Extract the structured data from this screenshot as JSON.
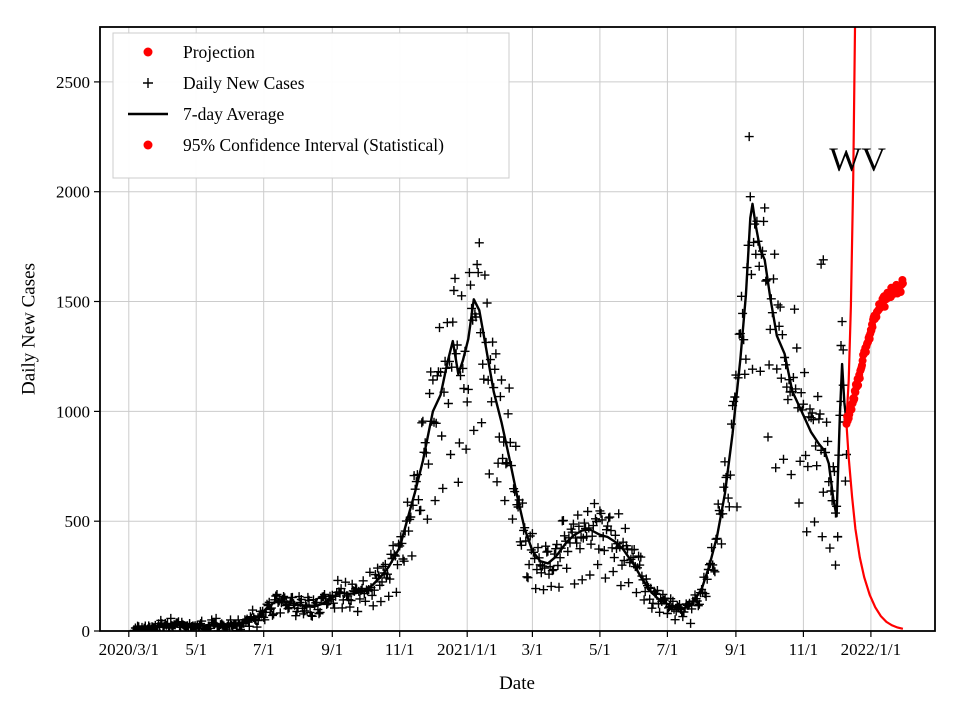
{
  "chart_data": {
    "type": "line+scatter",
    "title": "",
    "xlabel": "Date",
    "ylabel": "Daily New Cases",
    "annotation": {
      "text": "WV",
      "x": "2021-12-20",
      "y": 2150
    },
    "xlim": [
      "2020-02-04",
      "2022-02-28"
    ],
    "ylim": [
      0,
      2750
    ],
    "grid": true,
    "grid_color": "#cccccc",
    "frame_color": "#000000",
    "x_ticks": [
      {
        "date": "2020-03-01",
        "label": "2020/3/1"
      },
      {
        "date": "2020-05-01",
        "label": "5/1"
      },
      {
        "date": "2020-07-01",
        "label": "7/1"
      },
      {
        "date": "2020-09-01",
        "label": "9/1"
      },
      {
        "date": "2020-11-01",
        "label": "11/1"
      },
      {
        "date": "2021-01-01",
        "label": "2021/1/1"
      },
      {
        "date": "2021-03-01",
        "label": "3/1"
      },
      {
        "date": "2021-05-01",
        "label": "5/1"
      },
      {
        "date": "2021-07-01",
        "label": "7/1"
      },
      {
        "date": "2021-09-01",
        "label": "9/1"
      },
      {
        "date": "2021-11-01",
        "label": "11/1"
      },
      {
        "date": "2022-01-01",
        "label": "2022/1/1"
      }
    ],
    "y_ticks": [
      {
        "value": 0,
        "label": "0"
      },
      {
        "value": 500,
        "label": "500"
      },
      {
        "value": 1000,
        "label": "1000"
      },
      {
        "value": 1500,
        "label": "1500"
      },
      {
        "value": 2000,
        "label": "2000"
      },
      {
        "value": 2500,
        "label": "2500"
      }
    ],
    "legend": {
      "position": "upper-left",
      "border_color": "#cccccc",
      "items": [
        {
          "label": "Projection",
          "marker": "red-dot",
          "color": "#ff0000"
        },
        {
          "label": "Daily New Cases",
          "marker": "black-plus",
          "color": "#000000"
        },
        {
          "label": "7-day Average",
          "marker": "black-line",
          "color": "#000000"
        },
        {
          "label": "95% Confidence Interval (Statistical)",
          "marker": "red-dot",
          "color": "#ff0000"
        }
      ]
    },
    "series": {
      "avg_7day": {
        "name": "7-day Average",
        "color": "#000000",
        "width": 2.4,
        "points": [
          [
            "2020-03-05",
            1
          ],
          [
            "2020-03-12",
            6
          ],
          [
            "2020-03-20",
            12
          ],
          [
            "2020-03-27",
            22
          ],
          [
            "2020-04-05",
            30
          ],
          [
            "2020-04-12",
            33
          ],
          [
            "2020-04-20",
            28
          ],
          [
            "2020-04-27",
            25
          ],
          [
            "2020-05-05",
            24
          ],
          [
            "2020-05-12",
            27
          ],
          [
            "2020-05-20",
            25
          ],
          [
            "2020-05-27",
            26
          ],
          [
            "2020-06-04",
            32
          ],
          [
            "2020-06-12",
            40
          ],
          [
            "2020-06-20",
            52
          ],
          [
            "2020-06-27",
            70
          ],
          [
            "2020-07-04",
            105
          ],
          [
            "2020-07-11",
            132
          ],
          [
            "2020-07-18",
            138
          ],
          [
            "2020-07-25",
            128
          ],
          [
            "2020-08-01",
            120
          ],
          [
            "2020-08-08",
            112
          ],
          [
            "2020-08-15",
            110
          ],
          [
            "2020-08-22",
            122
          ],
          [
            "2020-09-01",
            150
          ],
          [
            "2020-09-08",
            176
          ],
          [
            "2020-09-15",
            168
          ],
          [
            "2020-09-22",
            172
          ],
          [
            "2020-10-01",
            182
          ],
          [
            "2020-10-08",
            212
          ],
          [
            "2020-10-15",
            248
          ],
          [
            "2020-10-22",
            292
          ],
          [
            "2020-11-01",
            380
          ],
          [
            "2020-11-08",
            510
          ],
          [
            "2020-11-15",
            635
          ],
          [
            "2020-11-22",
            775
          ],
          [
            "2020-12-01",
            1000
          ],
          [
            "2020-12-08",
            1075
          ],
          [
            "2020-12-14",
            1220
          ],
          [
            "2020-12-19",
            1320
          ],
          [
            "2020-12-24",
            1170
          ],
          [
            "2020-12-28",
            1230
          ],
          [
            "2021-01-02",
            1330
          ],
          [
            "2021-01-07",
            1510
          ],
          [
            "2021-01-12",
            1460
          ],
          [
            "2021-01-18",
            1290
          ],
          [
            "2021-01-25",
            1090
          ],
          [
            "2021-02-01",
            950
          ],
          [
            "2021-02-08",
            790
          ],
          [
            "2021-02-15",
            620
          ],
          [
            "2021-02-22",
            465
          ],
          [
            "2021-03-01",
            365
          ],
          [
            "2021-03-08",
            318
          ],
          [
            "2021-03-15",
            308
          ],
          [
            "2021-03-22",
            338
          ],
          [
            "2021-04-01",
            405
          ],
          [
            "2021-04-08",
            438
          ],
          [
            "2021-04-15",
            458
          ],
          [
            "2021-04-22",
            462
          ],
          [
            "2021-05-01",
            438
          ],
          [
            "2021-05-08",
            428
          ],
          [
            "2021-05-15",
            405
          ],
          [
            "2021-05-22",
            372
          ],
          [
            "2021-06-01",
            300
          ],
          [
            "2021-06-08",
            238
          ],
          [
            "2021-06-15",
            185
          ],
          [
            "2021-06-22",
            150
          ],
          [
            "2021-07-01",
            122
          ],
          [
            "2021-07-08",
            106
          ],
          [
            "2021-07-15",
            102
          ],
          [
            "2021-07-22",
            116
          ],
          [
            "2021-08-01",
            190
          ],
          [
            "2021-08-08",
            298
          ],
          [
            "2021-08-15",
            432
          ],
          [
            "2021-08-22",
            625
          ],
          [
            "2021-08-29",
            900
          ],
          [
            "2021-09-05",
            1240
          ],
          [
            "2021-09-10",
            1530
          ],
          [
            "2021-09-14",
            1880
          ],
          [
            "2021-09-16",
            1945
          ],
          [
            "2021-09-19",
            1845
          ],
          [
            "2021-09-23",
            1735
          ],
          [
            "2021-09-27",
            1690
          ],
          [
            "2021-10-02",
            1520
          ],
          [
            "2021-10-08",
            1345
          ],
          [
            "2021-10-15",
            1262
          ],
          [
            "2021-10-22",
            1092
          ],
          [
            "2021-11-01",
            982
          ],
          [
            "2021-11-08",
            905
          ],
          [
            "2021-11-15",
            852
          ],
          [
            "2021-11-20",
            822
          ],
          [
            "2021-11-24",
            762
          ],
          [
            "2021-11-28",
            602
          ],
          [
            "2021-12-01",
            522
          ],
          [
            "2021-12-04",
            985
          ],
          [
            "2021-12-06",
            1215
          ],
          [
            "2021-12-08",
            1042
          ],
          [
            "2021-12-10",
            955
          ]
        ]
      },
      "projection": {
        "name": "Projection",
        "color": "#ff0000",
        "marker_radius": 4,
        "jitter": 14,
        "points": [
          [
            "2021-12-10",
            950
          ],
          [
            "2021-12-14",
            1015
          ],
          [
            "2021-12-18",
            1090
          ],
          [
            "2021-12-22",
            1170
          ],
          [
            "2021-12-26",
            1255
          ],
          [
            "2021-12-30",
            1335
          ],
          [
            "2022-01-03",
            1405
          ],
          [
            "2022-01-07",
            1460
          ],
          [
            "2022-01-11",
            1500
          ],
          [
            "2022-01-15",
            1524
          ],
          [
            "2022-01-19",
            1540
          ],
          [
            "2022-01-23",
            1552
          ],
          [
            "2022-01-27",
            1562
          ],
          [
            "2022-01-30",
            1580
          ]
        ]
      },
      "ci_upper": {
        "name": "95% CI upper",
        "color": "#ff0000",
        "width": 2.2,
        "points": [
          [
            "2021-12-10",
            960
          ],
          [
            "2021-12-12",
            1140
          ],
          [
            "2021-12-14",
            1480
          ],
          [
            "2021-12-16",
            2050
          ],
          [
            "2021-12-18",
            2900
          ]
        ]
      },
      "ci_lower": {
        "name": "95% CI lower",
        "color": "#ff0000",
        "width": 2.2,
        "points": [
          [
            "2021-12-10",
            940
          ],
          [
            "2021-12-12",
            790
          ],
          [
            "2021-12-15",
            610
          ],
          [
            "2021-12-18",
            465
          ],
          [
            "2021-12-22",
            335
          ],
          [
            "2021-12-26",
            245
          ],
          [
            "2021-12-31",
            165
          ],
          [
            "2022-01-05",
            108
          ],
          [
            "2022-01-10",
            68
          ],
          [
            "2022-01-15",
            42
          ],
          [
            "2022-01-20",
            26
          ],
          [
            "2022-01-25",
            16
          ],
          [
            "2022-01-30",
            10
          ]
        ]
      },
      "daily_scatter": {
        "name": "Daily New Cases",
        "color": "#000000",
        "marker": "plus",
        "start": "2020-03-05",
        "end": "2021-12-10",
        "seed": 7,
        "noise_rel": 0.1,
        "noise_abs": 12,
        "dow_multipliers": [
          0.62,
          0.85,
          1.04,
          1.12,
          1.1,
          1.06,
          0.94
        ],
        "outliers": [
          [
            "2021-11-17",
            1670
          ],
          [
            "2021-11-19",
            1690
          ],
          [
            "2021-11-30",
            300
          ],
          [
            "2021-12-02",
            430
          ],
          [
            "2021-12-05",
            1300
          ],
          [
            "2021-12-07",
            1280
          ]
        ]
      }
    }
  }
}
